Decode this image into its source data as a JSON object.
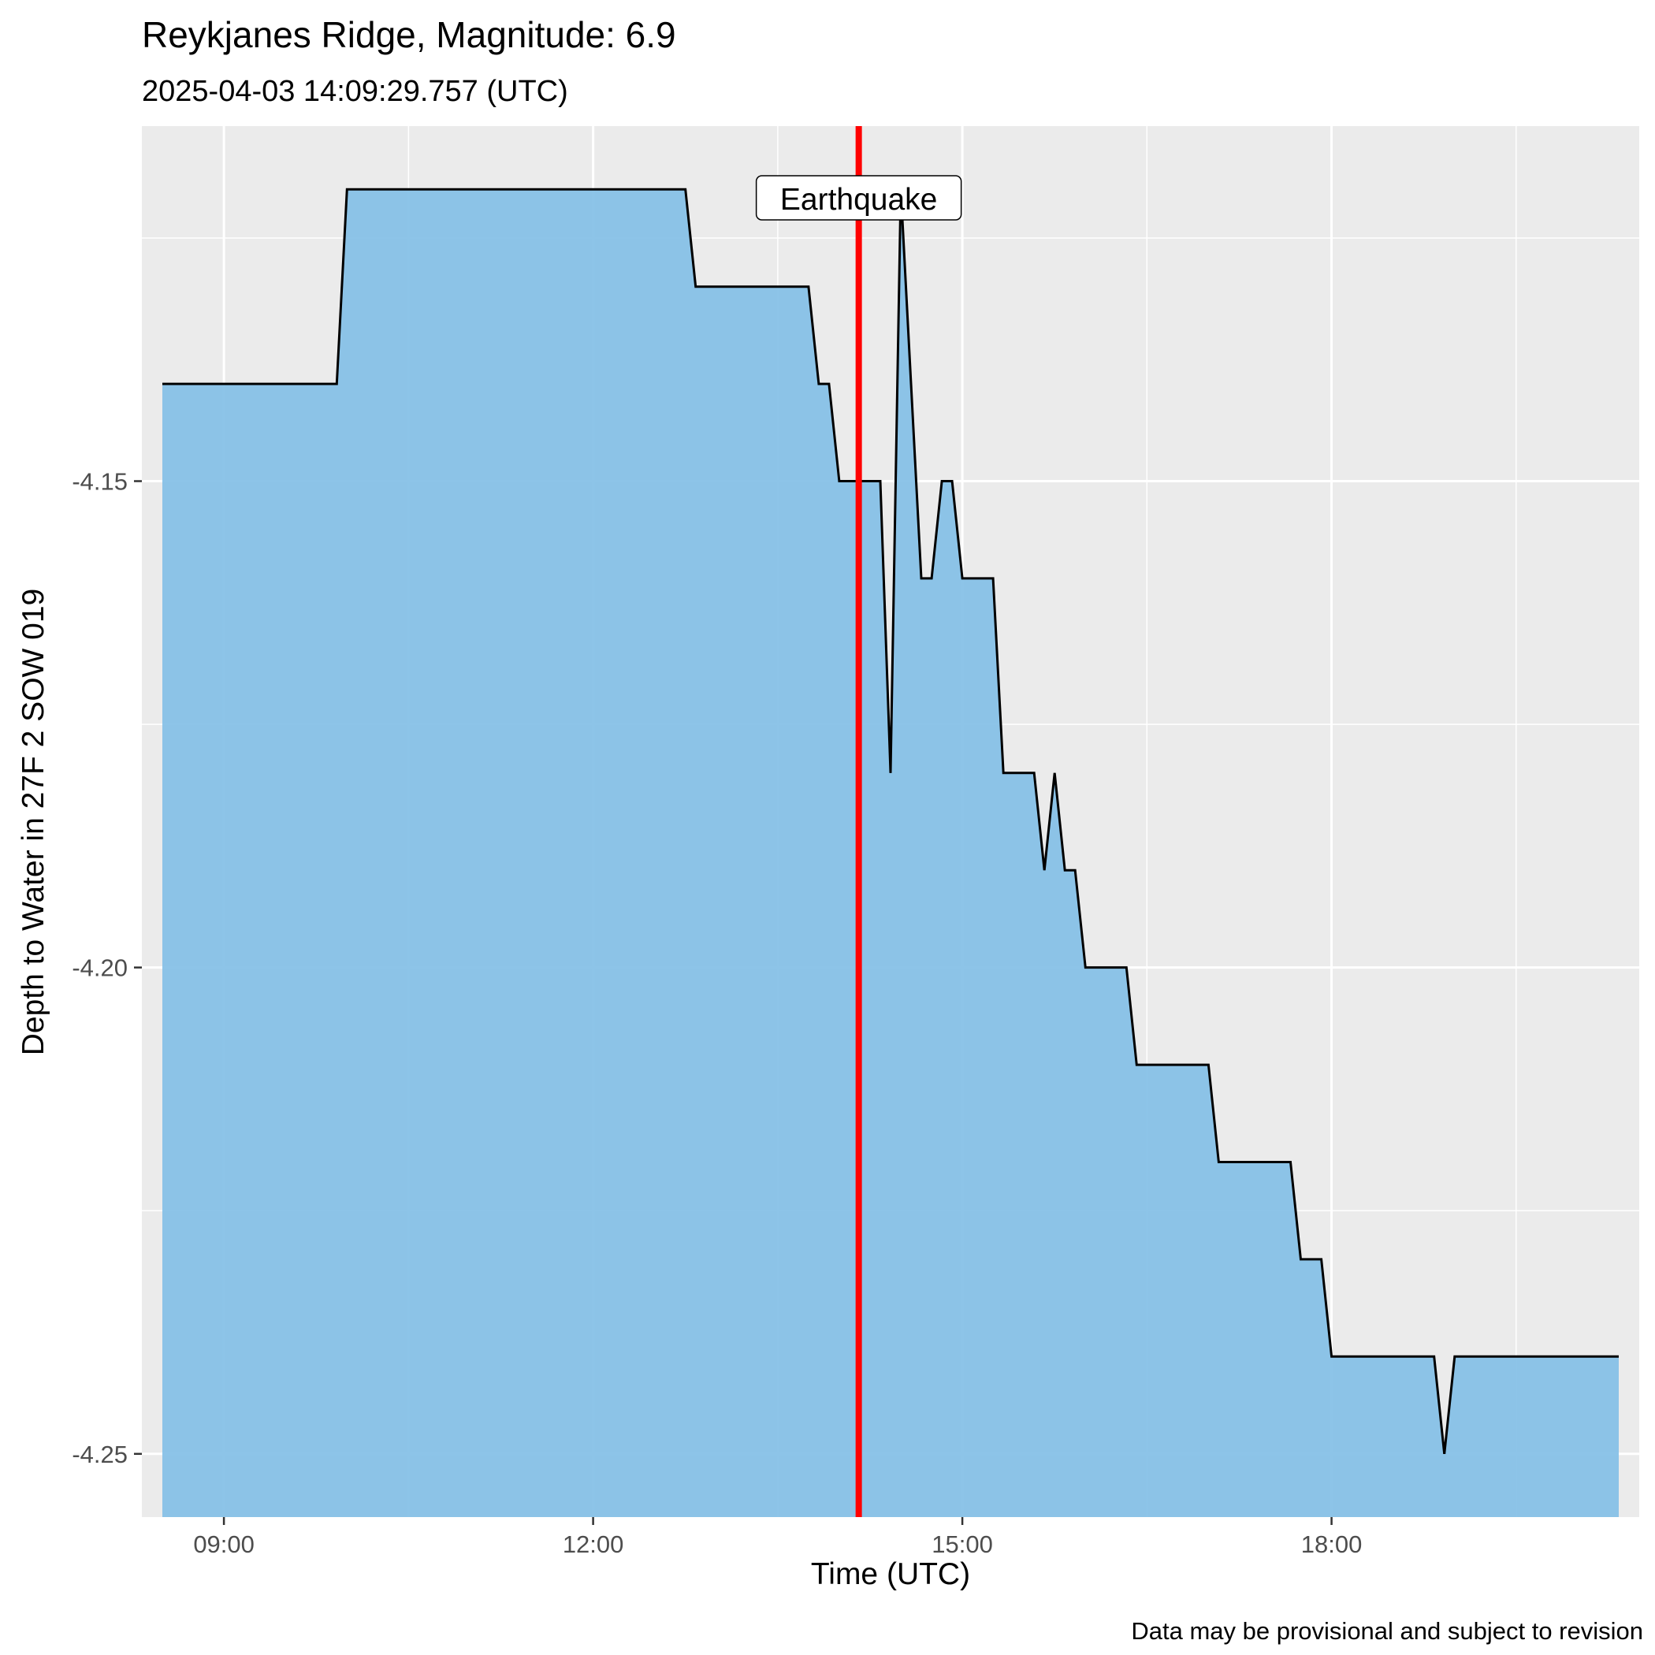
{
  "chart_data": {
    "type": "area",
    "title": "Reykjanes Ridge, Magnitude: 6.9",
    "subtitle": "2025-04-03 14:09:29.757 (UTC)",
    "xlabel": "Time (UTC)",
    "ylabel": "Depth to Water in 27F 2 SOW 019",
    "caption": "Data may be provisional and subject to revision",
    "x_ticks": [
      "09:00",
      "12:00",
      "15:00",
      "18:00"
    ],
    "y_ticks": [
      "-4.15",
      "-4.20",
      "-4.25"
    ],
    "xlim": [
      "08:20",
      "20:30"
    ],
    "ylim": [
      -4.2565,
      -4.1135
    ],
    "grid": true,
    "annotation": {
      "label": "Earthquake",
      "time": "14:09:29.757"
    },
    "colors": {
      "fill": "#87c1e7",
      "line": "#000000",
      "event": "#ff0000",
      "panel": "#ebebeb",
      "grid": "#ffffff"
    },
    "series": [
      {
        "x": [
          "08:30",
          "09:55",
          "10:00",
          "12:45",
          "12:50",
          "13:45",
          "13:50",
          "13:55",
          "14:00",
          "14:05",
          "14:10",
          "14:15",
          "14:20",
          "14:25",
          "14:30",
          "14:35",
          "14:40",
          "14:45",
          "14:50",
          "14:55",
          "15:00",
          "15:05",
          "15:10",
          "15:15",
          "15:20",
          "15:25",
          "15:30",
          "15:35",
          "15:40",
          "15:45",
          "15:50",
          "15:55",
          "16:00",
          "16:05",
          "16:10",
          "16:15",
          "16:20",
          "16:25",
          "16:30",
          "16:35",
          "16:40",
          "16:45",
          "16:50",
          "16:55",
          "17:00",
          "17:05",
          "17:10",
          "17:15",
          "17:20",
          "17:25",
          "17:30",
          "17:35",
          "17:40",
          "17:45",
          "17:50",
          "17:55",
          "18:00",
          "18:05",
          "18:10",
          "18:15",
          "18:20",
          "18:25",
          "18:30",
          "18:35",
          "18:40",
          "18:45",
          "18:50",
          "18:55",
          "19:00",
          "20:20"
        ],
        "y": [
          -4.14,
          -4.14,
          -4.12,
          -4.12,
          -4.13,
          -4.13,
          -4.14,
          -4.14,
          -4.15,
          -4.15,
          -4.15,
          -4.15,
          -4.15,
          -4.18,
          -4.12,
          -4.14,
          -4.16,
          -4.16,
          -4.15,
          -4.15,
          -4.16,
          -4.16,
          -4.16,
          -4.16,
          -4.18,
          -4.18,
          -4.18,
          -4.18,
          -4.19,
          -4.18,
          -4.19,
          -4.19,
          -4.2,
          -4.2,
          -4.2,
          -4.2,
          -4.2,
          -4.21,
          -4.21,
          -4.21,
          -4.21,
          -4.21,
          -4.21,
          -4.21,
          -4.21,
          -4.22,
          -4.22,
          -4.22,
          -4.22,
          -4.22,
          -4.22,
          -4.22,
          -4.22,
          -4.23,
          -4.23,
          -4.23,
          -4.24,
          -4.24,
          -4.24,
          -4.24,
          -4.24,
          -4.24,
          -4.24,
          -4.24,
          -4.24,
          -4.24,
          -4.24,
          -4.25,
          -4.24,
          -4.24
        ]
      }
    ]
  }
}
